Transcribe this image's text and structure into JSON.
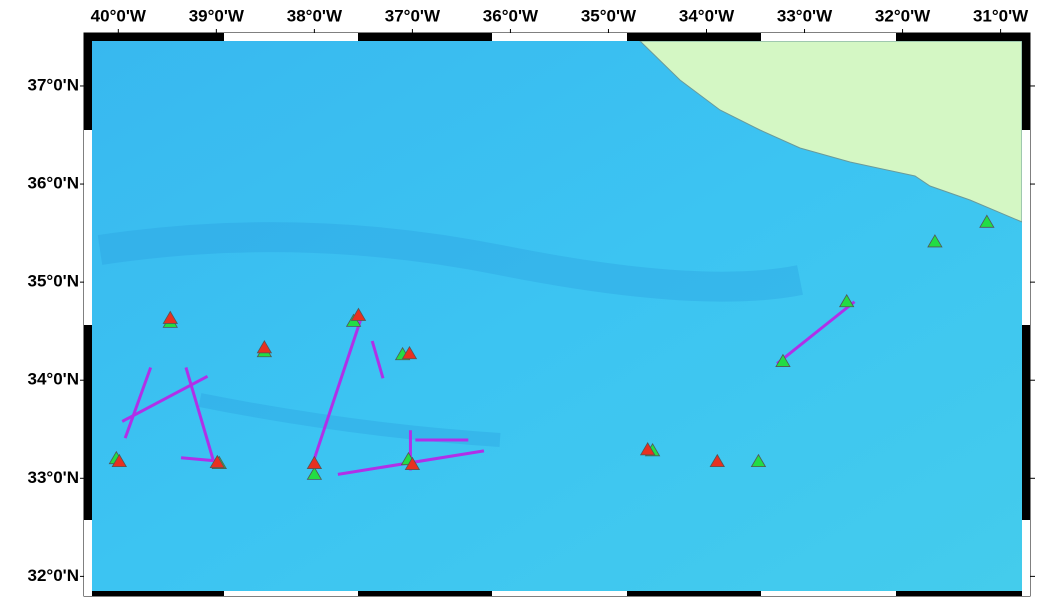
{
  "map": {
    "lonlim": [
      -40.35,
      -30.7
    ],
    "latlim": [
      31.8,
      37.54
    ],
    "lon_ticks": [
      {
        "value": -40,
        "label": "40°0'W"
      },
      {
        "value": -39,
        "label": "39°0'W"
      },
      {
        "value": -38,
        "label": "38°0'W"
      },
      {
        "value": -37,
        "label": "37°0'W"
      },
      {
        "value": -36,
        "label": "36°0'W"
      },
      {
        "value": -35,
        "label": "35°0'W"
      },
      {
        "value": -34,
        "label": "34°0'W"
      },
      {
        "value": -33,
        "label": "33°0'W"
      },
      {
        "value": -32,
        "label": "32°0'W"
      },
      {
        "value": -31,
        "label": "31°0'W"
      }
    ],
    "lat_ticks": [
      {
        "value": 37,
        "label": "37°0'N"
      },
      {
        "value": 36,
        "label": "36°0'N"
      },
      {
        "value": 35,
        "label": "35°0'N"
      },
      {
        "value": 34,
        "label": "34°0'N"
      },
      {
        "value": 33,
        "label": "33°0'N"
      },
      {
        "value": 32,
        "label": "32°0'N"
      }
    ],
    "grid": true,
    "track_color": "#b030e8",
    "tracks": [
      {
        "lon": [
          -39.96,
          -39.09
        ],
        "lat": [
          33.58,
          34.04
        ]
      },
      {
        "lon": [
          -39.93,
          -39.67
        ],
        "lat": [
          33.41,
          34.13
        ]
      },
      {
        "lon": [
          -39.31,
          -39.03
        ],
        "lat": [
          34.13,
          33.18
        ]
      },
      {
        "lon": [
          -39.36,
          -39.03
        ],
        "lat": [
          33.21,
          33.18
        ]
      },
      {
        "lon": [
          -38.0,
          -37.53
        ],
        "lat": [
          33.2,
          34.61
        ]
      },
      {
        "lon": [
          -37.41,
          -37.3
        ],
        "lat": [
          34.4,
          34.02
        ]
      },
      {
        "lon": [
          -37.76,
          -36.27
        ],
        "lat": [
          33.04,
          33.28
        ]
      },
      {
        "lon": [
          -37.02,
          -37.02
        ],
        "lat": [
          33.49,
          33.08
        ]
      },
      {
        "lon": [
          -36.97,
          -36.43
        ],
        "lat": [
          33.39,
          33.39
        ]
      },
      {
        "lon": [
          -33.28,
          -32.49
        ],
        "lat": [
          34.17,
          34.8
        ]
      }
    ],
    "markers": [
      {
        "lon": -39.47,
        "lat": 34.59,
        "color": "#22dd44"
      },
      {
        "lon": -39.47,
        "lat": 34.63,
        "color": "#e83020"
      },
      {
        "lon": -38.51,
        "lat": 34.29,
        "color": "#22dd44"
      },
      {
        "lon": -38.51,
        "lat": 34.33,
        "color": "#e83020"
      },
      {
        "lon": -37.6,
        "lat": 34.6,
        "color": "#22dd44"
      },
      {
        "lon": -37.55,
        "lat": 34.66,
        "color": "#e83020"
      },
      {
        "lon": -37.1,
        "lat": 34.26,
        "color": "#22dd44"
      },
      {
        "lon": -37.03,
        "lat": 34.27,
        "color": "#e83020"
      },
      {
        "lon": -40.02,
        "lat": 33.2,
        "color": "#22dd44"
      },
      {
        "lon": -39.99,
        "lat": 33.17,
        "color": "#e83020"
      },
      {
        "lon": -38.97,
        "lat": 33.15,
        "color": "#22dd44"
      },
      {
        "lon": -38.99,
        "lat": 33.16,
        "color": "#e83020"
      },
      {
        "lon": -38.0,
        "lat": 33.04,
        "color": "#22dd44"
      },
      {
        "lon": -38.0,
        "lat": 33.15,
        "color": "#e83020"
      },
      {
        "lon": -37.04,
        "lat": 33.19,
        "color": "#22dd44"
      },
      {
        "lon": -37.0,
        "lat": 33.14,
        "color": "#e83020"
      },
      {
        "lon": -34.55,
        "lat": 33.28,
        "color": "#22dd44"
      },
      {
        "lon": -34.6,
        "lat": 33.29,
        "color": "#e83020"
      },
      {
        "lon": -33.89,
        "lat": 33.17,
        "color": "#e83020"
      },
      {
        "lon": -33.47,
        "lat": 33.17,
        "color": "#22dd44"
      },
      {
        "lon": -33.22,
        "lat": 34.19,
        "color": "#22dd44"
      },
      {
        "lon": -32.57,
        "lat": 34.8,
        "color": "#22dd44"
      },
      {
        "lon": -31.67,
        "lat": 35.41,
        "color": "#22dd44"
      },
      {
        "lon": -31.14,
        "lat": 35.61,
        "color": "#22dd44"
      }
    ]
  }
}
